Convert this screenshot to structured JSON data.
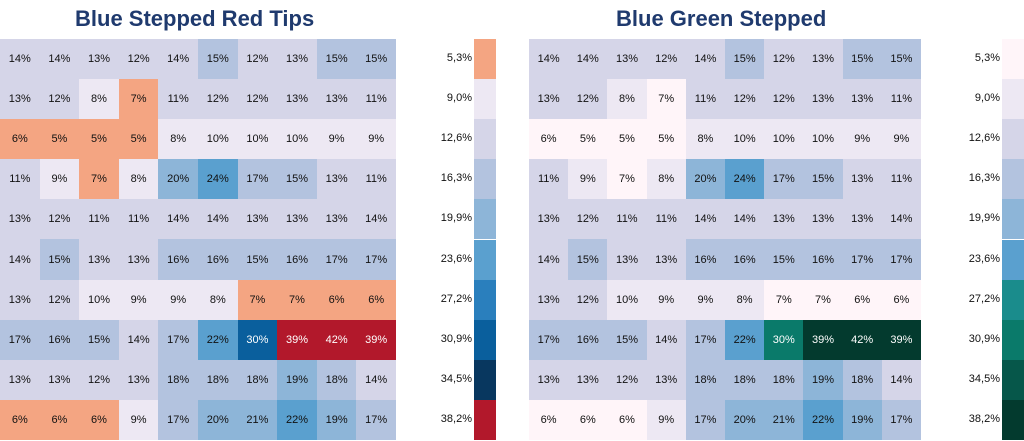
{
  "chart_data": [
    {
      "type": "heatmap",
      "title": "Blue Stepped Red Tips",
      "values": [
        [
          "14%",
          "14%",
          "13%",
          "12%",
          "14%",
          "15%",
          "12%",
          "13%",
          "15%",
          "15%"
        ],
        [
          "13%",
          "12%",
          "8%",
          "7%",
          "11%",
          "12%",
          "12%",
          "13%",
          "13%",
          "11%"
        ],
        [
          "6%",
          "5%",
          "5%",
          "5%",
          "8%",
          "10%",
          "10%",
          "10%",
          "9%",
          "9%"
        ],
        [
          "11%",
          "9%",
          "7%",
          "8%",
          "20%",
          "24%",
          "17%",
          "15%",
          "13%",
          "11%"
        ],
        [
          "13%",
          "12%",
          "11%",
          "11%",
          "14%",
          "14%",
          "13%",
          "13%",
          "13%",
          "14%"
        ],
        [
          "14%",
          "15%",
          "13%",
          "13%",
          "16%",
          "16%",
          "15%",
          "16%",
          "17%",
          "17%"
        ],
        [
          "13%",
          "12%",
          "10%",
          "9%",
          "9%",
          "8%",
          "7%",
          "7%",
          "6%",
          "6%"
        ],
        [
          "17%",
          "16%",
          "15%",
          "14%",
          "17%",
          "22%",
          "30%",
          "39%",
          "42%",
          "39%"
        ],
        [
          "13%",
          "13%",
          "12%",
          "13%",
          "18%",
          "18%",
          "18%",
          "19%",
          "18%",
          "14%"
        ],
        [
          "6%",
          "6%",
          "6%",
          "9%",
          "17%",
          "20%",
          "21%",
          "22%",
          "19%",
          "17%"
        ]
      ],
      "legend": [
        "5,3%",
        "9,0%",
        "12,6%",
        "16,3%",
        "19,9%",
        "23,6%",
        "27,2%",
        "30,9%",
        "34,5%",
        "38,2%"
      ],
      "palette": [
        "#f4a582",
        "#ede8f3",
        "#d5d5e8",
        "#b3c3df",
        "#8db5d8",
        "#5aa0cf",
        "#2a7fbd",
        "#0a5f9d",
        "#08375f",
        "#b2182b"
      ]
    },
    {
      "type": "heatmap",
      "title": "Blue Green Stepped",
      "values": [
        [
          "14%",
          "14%",
          "13%",
          "12%",
          "14%",
          "15%",
          "12%",
          "13%",
          "15%",
          "15%"
        ],
        [
          "13%",
          "12%",
          "8%",
          "7%",
          "11%",
          "12%",
          "12%",
          "13%",
          "13%",
          "11%"
        ],
        [
          "6%",
          "5%",
          "5%",
          "5%",
          "8%",
          "10%",
          "10%",
          "10%",
          "9%",
          "9%"
        ],
        [
          "11%",
          "9%",
          "7%",
          "8%",
          "20%",
          "24%",
          "17%",
          "15%",
          "13%",
          "11%"
        ],
        [
          "13%",
          "12%",
          "11%",
          "11%",
          "14%",
          "14%",
          "13%",
          "13%",
          "13%",
          "14%"
        ],
        [
          "14%",
          "15%",
          "13%",
          "13%",
          "16%",
          "16%",
          "15%",
          "16%",
          "17%",
          "17%"
        ],
        [
          "13%",
          "12%",
          "10%",
          "9%",
          "9%",
          "8%",
          "7%",
          "7%",
          "6%",
          "6%"
        ],
        [
          "17%",
          "16%",
          "15%",
          "14%",
          "17%",
          "22%",
          "30%",
          "39%",
          "42%",
          "39%"
        ],
        [
          "13%",
          "13%",
          "12%",
          "13%",
          "18%",
          "18%",
          "18%",
          "19%",
          "18%",
          "14%"
        ],
        [
          "6%",
          "6%",
          "6%",
          "9%",
          "17%",
          "20%",
          "21%",
          "22%",
          "19%",
          "17%"
        ]
      ],
      "legend": [
        "5,3%",
        "9,0%",
        "12,6%",
        "16,3%",
        "19,9%",
        "23,6%",
        "27,2%",
        "30,9%",
        "34,5%",
        "38,2%"
      ],
      "palette": [
        "#fff5f9",
        "#ede8f3",
        "#d5d5e8",
        "#b3c3df",
        "#8db5d8",
        "#5aa0cf",
        "#1a8c8c",
        "#0a7a6a",
        "#06574a",
        "#033a2e"
      ]
    }
  ]
}
